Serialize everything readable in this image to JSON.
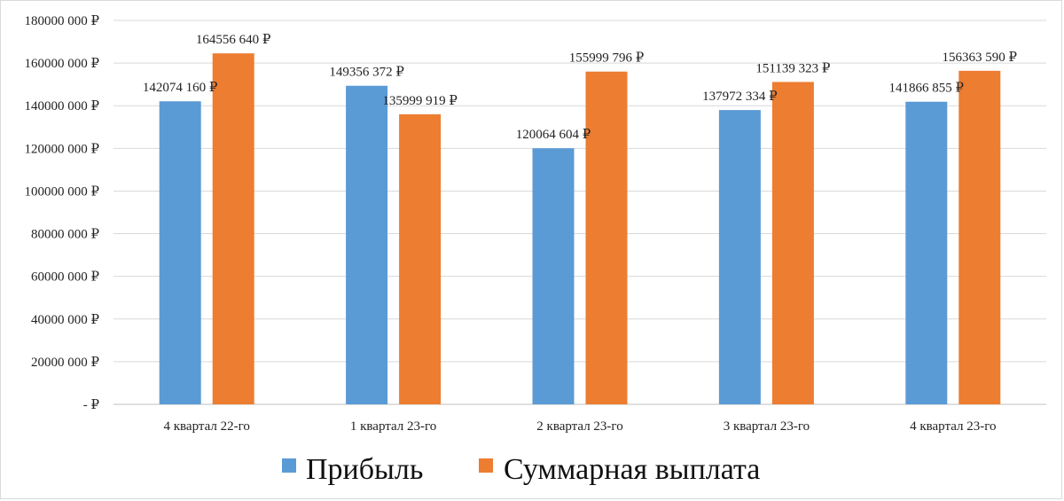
{
  "chart_data": {
    "type": "bar",
    "categories": [
      "4 квартал 22-го",
      "1 квартал 23-го",
      "2 квартал 23-го",
      "3 квартал 23-го",
      "4 квартал 23-го"
    ],
    "series": [
      {
        "name": "Прибыль",
        "color": "#5b9bd5",
        "values": [
          142074160,
          149356372,
          120064604,
          137972334,
          141866855
        ],
        "labels": [
          "142074  160 ₽",
          "149356 372 ₽",
          "120064  604 ₽",
          "137972  334 ₽",
          "141866  855 ₽"
        ]
      },
      {
        "name": "Суммарная выплата",
        "color": "#ed7d31",
        "values": [
          164556640,
          135999919,
          155999796,
          151139323,
          156363590
        ],
        "labels": [
          "164556  640 ₽",
          "135999  919 ₽",
          "155999  796 ₽",
          "151139  323 ₽",
          "156363  590 ₽"
        ]
      }
    ],
    "ylim": [
      0,
      180000000
    ],
    "yticks": [
      0,
      20000000,
      40000000,
      60000000,
      80000000,
      100000000,
      120000000,
      140000000,
      160000000,
      180000000
    ],
    "ytick_labels": [
      "-  ₽",
      "20000 000 ₽",
      "40000 000 ₽",
      "60000 000 ₽",
      "80000 000 ₽",
      "100000 000 ₽",
      "120000 000 ₽",
      "140000 000 ₽",
      "160000 000 ₽",
      "180000 000 ₽"
    ],
    "grid": true,
    "legend_position": "bottom",
    "xlabel": "",
    "ylabel": ""
  }
}
